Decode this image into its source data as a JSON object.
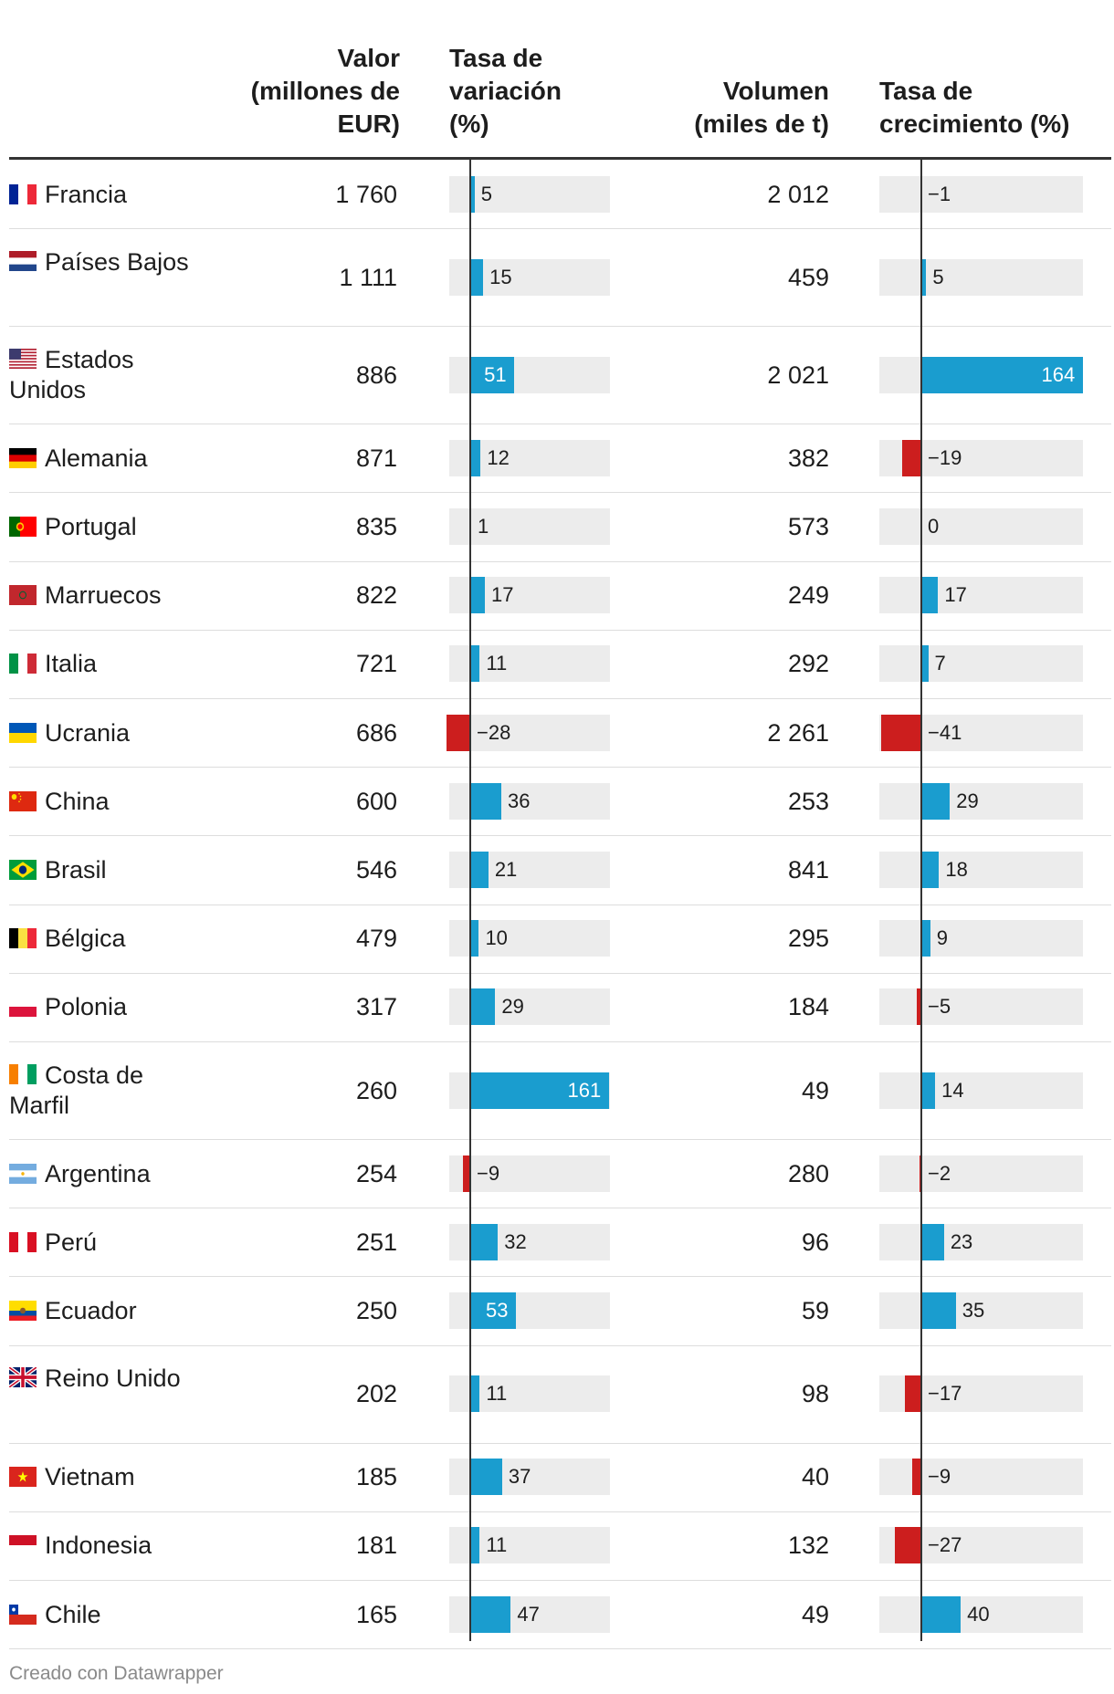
{
  "headers": {
    "valor": [
      "Valor",
      "(millones de",
      "EUR)"
    ],
    "tasa_variacion": [
      "Tasa de",
      "variación",
      "(%)"
    ],
    "volumen": [
      "Volumen",
      "(miles de t)"
    ],
    "tasa_crecimiento": [
      "Tasa de",
      "crecimiento (%)"
    ]
  },
  "footer": "Creado con Datawrapper",
  "colors": {
    "positive": "#1a9dcf",
    "negative": "#cc1e1e",
    "track": "#ececec",
    "axis": "#333333"
  },
  "chart_data": {
    "type": "table",
    "rows": [
      {
        "country": "Francia",
        "flag": "fr",
        "valor": "1 760",
        "variacion": 5,
        "volumen": "2 012",
        "crecimiento": -1
      },
      {
        "country": "Países Bajos",
        "flag": "nl",
        "valor": "1 111",
        "variacion": 15,
        "volumen": "459",
        "crecimiento": 5
      },
      {
        "country": "Estados Unidos",
        "flag": "us",
        "valor": "886",
        "variacion": 51,
        "volumen": "2 021",
        "crecimiento": 164
      },
      {
        "country": "Alemania",
        "flag": "de",
        "valor": "871",
        "variacion": 12,
        "volumen": "382",
        "crecimiento": -19
      },
      {
        "country": "Portugal",
        "flag": "pt",
        "valor": "835",
        "variacion": 1,
        "volumen": "573",
        "crecimiento": 0
      },
      {
        "country": "Marruecos",
        "flag": "ma",
        "valor": "822",
        "variacion": 17,
        "volumen": "249",
        "crecimiento": 17
      },
      {
        "country": "Italia",
        "flag": "it",
        "valor": "721",
        "variacion": 11,
        "volumen": "292",
        "crecimiento": 7
      },
      {
        "country": "Ucrania",
        "flag": "ua",
        "valor": "686",
        "variacion": -28,
        "volumen": "2 261",
        "crecimiento": -41
      },
      {
        "country": "China",
        "flag": "cn",
        "valor": "600",
        "variacion": 36,
        "volumen": "253",
        "crecimiento": 29
      },
      {
        "country": "Brasil",
        "flag": "br",
        "valor": "546",
        "variacion": 21,
        "volumen": "841",
        "crecimiento": 18
      },
      {
        "country": "Bélgica",
        "flag": "be",
        "valor": "479",
        "variacion": 10,
        "volumen": "295",
        "crecimiento": 9
      },
      {
        "country": "Polonia",
        "flag": "pl",
        "valor": "317",
        "variacion": 29,
        "volumen": "184",
        "crecimiento": -5
      },
      {
        "country": "Costa de Marfil",
        "flag": "ci",
        "valor": "260",
        "variacion": 161,
        "volumen": "49",
        "crecimiento": 14
      },
      {
        "country": "Argentina",
        "flag": "ar",
        "valor": "254",
        "variacion": -9,
        "volumen": "280",
        "crecimiento": -2
      },
      {
        "country": "Perú",
        "flag": "pe",
        "valor": "251",
        "variacion": 32,
        "volumen": "96",
        "crecimiento": 23
      },
      {
        "country": "Ecuador",
        "flag": "ec",
        "valor": "250",
        "variacion": 53,
        "volumen": "59",
        "crecimiento": 35
      },
      {
        "country": "Reino Unido",
        "flag": "gb",
        "valor": "202",
        "variacion": 11,
        "volumen": "98",
        "crecimiento": -17
      },
      {
        "country": "Vietnam",
        "flag": "vn",
        "valor": "185",
        "variacion": 37,
        "volumen": "40",
        "crecimiento": -9
      },
      {
        "country": "Indonesia",
        "flag": "id",
        "valor": "181",
        "variacion": 11,
        "volumen": "132",
        "crecimiento": -27
      },
      {
        "country": "Chile",
        "flag": "cl",
        "valor": "165",
        "variacion": 47,
        "volumen": "49",
        "crecimiento": 40
      }
    ]
  }
}
